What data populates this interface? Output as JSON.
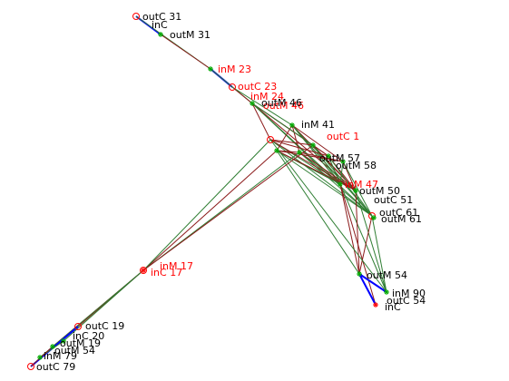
{
  "colors": {
    "black": "#000000",
    "red": "#ff0000",
    "green": "#00aa00",
    "blue": "#0000ff",
    "dark_red": "#8b1a1a",
    "dark_green": "#2e7d32"
  },
  "labels": [
    {
      "text": "outC 31",
      "color": "black"
    },
    {
      "text": "inC",
      "color": "black"
    },
    {
      "text": "outM 31",
      "color": "black"
    },
    {
      "text": "inM 23",
      "color": "red"
    },
    {
      "text": "outC 23",
      "color": "red"
    },
    {
      "text": "inM 24",
      "color": "red"
    },
    {
      "text": "outM 46",
      "color": "red"
    },
    {
      "text": "outM 46",
      "color": "black"
    },
    {
      "text": "inM 41",
      "color": "black"
    },
    {
      "text": "outC 1",
      "color": "red"
    },
    {
      "text": "outM 57",
      "color": "black"
    },
    {
      "text": "outM 58",
      "color": "black"
    },
    {
      "text": "inM 47",
      "color": "red"
    },
    {
      "text": "outM 50",
      "color": "black"
    },
    {
      "text": "outC 51",
      "color": "black"
    },
    {
      "text": "outC 61",
      "color": "black"
    },
    {
      "text": "outM 61",
      "color": "black"
    },
    {
      "text": "inM 17",
      "color": "red"
    },
    {
      "text": "inC 17",
      "color": "red"
    },
    {
      "text": "outM 54",
      "color": "black"
    },
    {
      "text": "inM 90",
      "color": "black"
    },
    {
      "text": "outC 54",
      "color": "black"
    },
    {
      "text": "inC",
      "color": "black"
    },
    {
      "text": "outC 19",
      "color": "black"
    },
    {
      "text": "inC 20",
      "color": "black"
    },
    {
      "text": "outM 19",
      "color": "black"
    },
    {
      "text": "outM 54",
      "color": "black"
    },
    {
      "text": "inM 79",
      "color": "black"
    },
    {
      "text": "outC 79",
      "color": "black"
    }
  ]
}
